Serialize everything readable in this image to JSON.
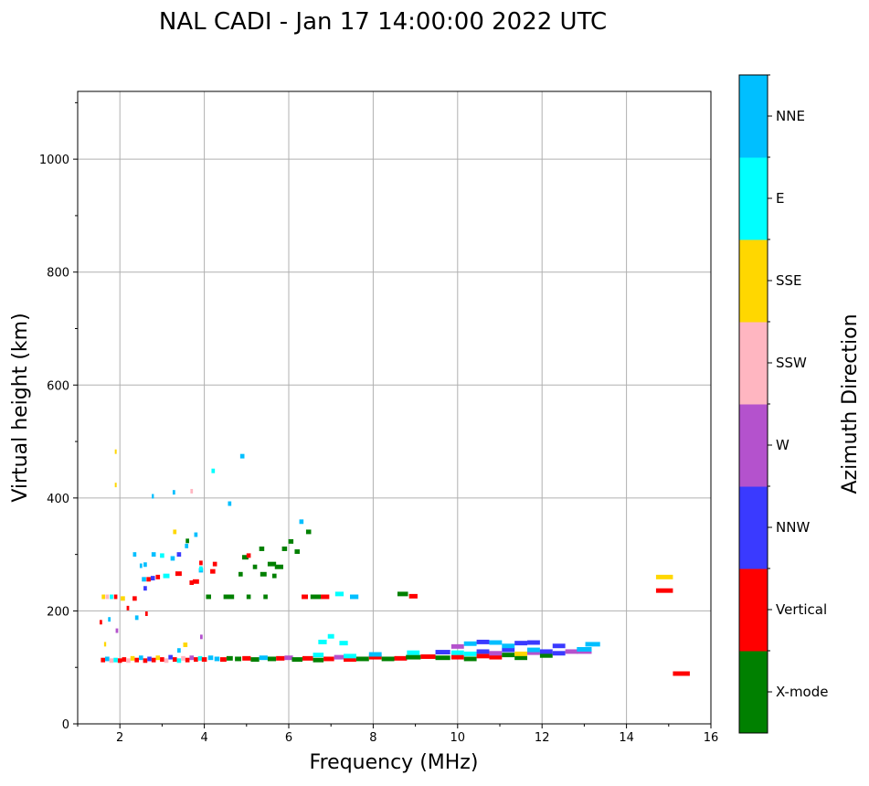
{
  "chart_data": {
    "type": "scatter",
    "title": "NAL CADI - Jan 17 14:00:00 2022 UTC",
    "xlabel": "Frequency (MHz)",
    "ylabel": "Virtual height (km)",
    "xlim": [
      1,
      16
    ],
    "ylim": [
      0,
      1120
    ],
    "xticks": [
      "2",
      "4",
      "6",
      "8",
      "10",
      "12",
      "14",
      "16"
    ],
    "yticks": [
      "0",
      "200",
      "400",
      "600",
      "800",
      "1000"
    ],
    "grid": true,
    "colorbar": {
      "title": "Azimuth Direction",
      "categories": [
        "X-mode",
        "Vertical",
        "NNW",
        "W",
        "SSW",
        "SSE",
        "E",
        "NNE"
      ],
      "colors": [
        "#008000",
        "#ff0000",
        "#3a3aff",
        "#b452cd",
        "#ffb6c1",
        "#ffd700",
        "#00ffff",
        "#00bfff"
      ]
    },
    "echo_fields": [
      "frequency_mhz",
      "virtual_height_km",
      "frequency_width_mhz",
      "category_index"
    ],
    "echoes": [
      [
        1.6,
        113,
        0.1,
        1
      ],
      [
        1.7,
        115,
        0.1,
        7
      ],
      [
        1.8,
        112,
        0.1,
        4
      ],
      [
        1.9,
        113,
        0.1,
        6
      ],
      [
        2.0,
        112,
        0.1,
        1
      ],
      [
        2.1,
        114,
        0.1,
        1
      ],
      [
        2.2,
        112,
        0.1,
        4
      ],
      [
        2.3,
        116,
        0.1,
        5
      ],
      [
        2.4,
        113,
        0.1,
        1
      ],
      [
        2.5,
        117,
        0.1,
        7
      ],
      [
        2.6,
        112,
        0.1,
        1
      ],
      [
        2.7,
        115,
        0.1,
        2
      ],
      [
        2.8,
        113,
        0.1,
        1
      ],
      [
        2.9,
        117,
        0.1,
        5
      ],
      [
        3.0,
        114,
        0.1,
        1
      ],
      [
        3.1,
        112,
        0.1,
        4
      ],
      [
        3.2,
        118,
        0.1,
        2
      ],
      [
        3.3,
        114,
        0.1,
        1
      ],
      [
        3.4,
        112,
        0.1,
        6
      ],
      [
        3.5,
        116,
        0.1,
        4
      ],
      [
        3.6,
        113,
        0.1,
        1
      ],
      [
        3.7,
        117,
        0.1,
        3
      ],
      [
        3.8,
        114,
        0.1,
        1
      ],
      [
        3.9,
        116,
        0.1,
        6
      ],
      [
        4.0,
        114,
        0.12,
        1
      ],
      [
        4.15,
        117,
        0.12,
        7
      ],
      [
        4.3,
        115,
        0.12,
        7
      ],
      [
        4.45,
        114,
        0.15,
        1
      ],
      [
        4.6,
        116,
        0.15,
        0
      ],
      [
        4.8,
        115,
        0.15,
        0
      ],
      [
        5.0,
        116,
        0.2,
        1
      ],
      [
        5.2,
        114,
        0.2,
        0
      ],
      [
        5.4,
        117,
        0.2,
        7
      ],
      [
        5.6,
        115,
        0.2,
        0
      ],
      [
        5.8,
        116,
        0.2,
        1
      ],
      [
        6.0,
        117,
        0.2,
        3
      ],
      [
        6.2,
        114,
        0.25,
        0
      ],
      [
        6.45,
        116,
        0.25,
        1
      ],
      [
        6.7,
        113,
        0.25,
        0
      ],
      [
        6.7,
        122,
        0.25,
        6
      ],
      [
        6.95,
        115,
        0.25,
        1
      ],
      [
        7.2,
        118,
        0.25,
        3
      ],
      [
        7.45,
        114,
        0.3,
        1
      ],
      [
        7.45,
        120,
        0.3,
        6
      ],
      [
        7.75,
        115,
        0.3,
        0
      ],
      [
        8.05,
        118,
        0.3,
        1
      ],
      [
        8.05,
        123,
        0.3,
        7
      ],
      [
        8.35,
        115,
        0.3,
        0
      ],
      [
        8.65,
        116,
        0.3,
        1
      ],
      [
        8.95,
        118,
        0.35,
        0
      ],
      [
        8.95,
        126,
        0.3,
        6
      ],
      [
        9.3,
        119,
        0.35,
        1
      ],
      [
        9.65,
        117,
        0.35,
        0
      ],
      [
        9.65,
        127,
        0.35,
        2
      ],
      [
        10.0,
        118,
        0.3,
        1
      ],
      [
        10.0,
        126,
        0.3,
        6
      ],
      [
        10.0,
        137,
        0.3,
        3
      ],
      [
        10.3,
        115,
        0.3,
        0
      ],
      [
        10.3,
        124,
        0.3,
        6
      ],
      [
        10.3,
        142,
        0.3,
        7
      ],
      [
        10.6,
        120,
        0.3,
        1
      ],
      [
        10.6,
        128,
        0.3,
        2
      ],
      [
        10.6,
        145,
        0.3,
        2
      ],
      [
        10.9,
        118,
        0.3,
        1
      ],
      [
        10.9,
        125,
        0.3,
        3
      ],
      [
        10.9,
        144,
        0.3,
        7
      ],
      [
        11.2,
        122,
        0.3,
        0
      ],
      [
        11.2,
        131,
        0.3,
        2
      ],
      [
        11.2,
        138,
        0.3,
        7
      ],
      [
        11.5,
        117,
        0.3,
        0
      ],
      [
        11.5,
        124,
        0.3,
        5
      ],
      [
        11.5,
        143,
        0.3,
        2
      ],
      [
        11.8,
        126,
        0.3,
        3
      ],
      [
        11.8,
        131,
        0.3,
        7
      ],
      [
        11.8,
        144,
        0.3,
        2
      ],
      [
        12.1,
        121,
        0.3,
        0
      ],
      [
        12.1,
        128,
        0.3,
        2
      ],
      [
        12.4,
        125,
        0.3,
        2
      ],
      [
        12.4,
        138,
        0.3,
        2
      ],
      [
        12.7,
        128,
        0.3,
        3
      ],
      [
        13.0,
        128,
        0.35,
        3
      ],
      [
        13.0,
        132,
        0.35,
        7
      ],
      [
        13.2,
        141,
        0.35,
        7
      ],
      [
        1.61,
        225,
        0.08,
        5
      ],
      [
        1.7,
        225,
        0.08,
        4
      ],
      [
        1.8,
        225,
        0.08,
        6
      ],
      [
        1.9,
        225,
        0.08,
        1
      ],
      [
        2.07,
        222,
        0.1,
        5
      ],
      [
        2.35,
        222,
        0.1,
        1
      ],
      [
        2.57,
        256,
        0.1,
        7
      ],
      [
        2.68,
        256,
        0.1,
        1
      ],
      [
        2.78,
        258,
        0.1,
        2
      ],
      [
        2.9,
        260,
        0.1,
        1
      ],
      [
        3.1,
        262,
        0.15,
        6
      ],
      [
        3.39,
        266,
        0.15,
        1
      ],
      [
        3.7,
        250,
        0.1,
        1
      ],
      [
        3.8,
        252,
        0.15,
        1
      ],
      [
        4.2,
        270,
        0.12,
        1
      ],
      [
        3.92,
        272,
        0.1,
        7
      ],
      [
        2.6,
        240,
        0.08,
        2
      ],
      [
        2.35,
        300,
        0.08,
        7
      ],
      [
        2.8,
        300,
        0.1,
        7
      ],
      [
        3.0,
        298,
        0.1,
        6
      ],
      [
        3.25,
        293,
        0.1,
        7
      ],
      [
        3.4,
        300,
        0.1,
        2
      ],
      [
        3.58,
        315,
        0.08,
        7
      ],
      [
        3.92,
        285,
        0.08,
        1
      ],
      [
        3.92,
        275,
        0.08,
        6
      ],
      [
        2.5,
        280,
        0.06,
        7
      ],
      [
        2.6,
        282,
        0.08,
        7
      ],
      [
        3.3,
        340,
        0.08,
        5
      ],
      [
        3.6,
        324,
        0.08,
        0
      ],
      [
        3.8,
        335,
        0.08,
        7
      ],
      [
        4.21,
        448,
        0.08,
        6
      ],
      [
        4.9,
        474,
        0.1,
        7
      ],
      [
        2.78,
        403,
        0.05,
        7
      ],
      [
        3.28,
        410,
        0.06,
        7
      ],
      [
        3.7,
        412,
        0.06,
        4
      ],
      [
        1.9,
        482,
        0.04,
        5
      ],
      [
        1.9,
        423,
        0.04,
        5
      ],
      [
        4.6,
        390,
        0.08,
        7
      ],
      [
        6.3,
        358,
        0.1,
        7
      ],
      [
        4.97,
        295,
        0.15,
        0
      ],
      [
        5.36,
        310,
        0.12,
        0
      ],
      [
        5.6,
        283,
        0.2,
        0
      ],
      [
        5.77,
        278,
        0.2,
        0
      ],
      [
        6.05,
        323,
        0.12,
        0
      ],
      [
        6.2,
        305,
        0.12,
        0
      ],
      [
        6.47,
        340,
        0.12,
        0
      ],
      [
        5.9,
        310,
        0.12,
        0
      ],
      [
        5.2,
        278,
        0.1,
        0
      ],
      [
        5.4,
        265,
        0.15,
        0
      ],
      [
        5.66,
        262,
        0.1,
        0
      ],
      [
        4.86,
        265,
        0.1,
        0
      ],
      [
        5.05,
        298,
        0.1,
        1
      ],
      [
        4.25,
        283,
        0.1,
        1
      ],
      [
        4.1,
        225,
        0.12,
        0
      ],
      [
        4.58,
        225,
        0.25,
        0
      ],
      [
        5.05,
        225,
        0.1,
        0
      ],
      [
        5.45,
        225,
        0.1,
        0
      ],
      [
        6.38,
        225,
        0.15,
        1
      ],
      [
        6.64,
        225,
        0.25,
        0
      ],
      [
        6.86,
        225,
        0.2,
        1
      ],
      [
        7.2,
        230,
        0.2,
        6
      ],
      [
        7.55,
        225,
        0.2,
        7
      ],
      [
        8.7,
        230,
        0.25,
        0
      ],
      [
        8.95,
        226,
        0.2,
        1
      ],
      [
        1.55,
        180,
        0.06,
        1
      ],
      [
        1.75,
        185,
        0.06,
        7
      ],
      [
        1.93,
        165,
        0.06,
        3
      ],
      [
        2.19,
        205,
        0.06,
        1
      ],
      [
        2.4,
        188,
        0.08,
        7
      ],
      [
        2.63,
        195,
        0.06,
        1
      ],
      [
        1.65,
        141,
        0.05,
        5
      ],
      [
        3.55,
        140,
        0.1,
        5
      ],
      [
        3.4,
        130,
        0.08,
        7
      ],
      [
        3.93,
        154,
        0.06,
        3
      ],
      [
        6.8,
        145,
        0.2,
        6
      ],
      [
        7.0,
        155,
        0.15,
        6
      ],
      [
        7.3,
        143,
        0.2,
        6
      ],
      [
        14.9,
        260,
        0.4,
        5
      ],
      [
        14.9,
        236,
        0.4,
        1
      ],
      [
        15.3,
        89,
        0.4,
        1
      ]
    ]
  }
}
